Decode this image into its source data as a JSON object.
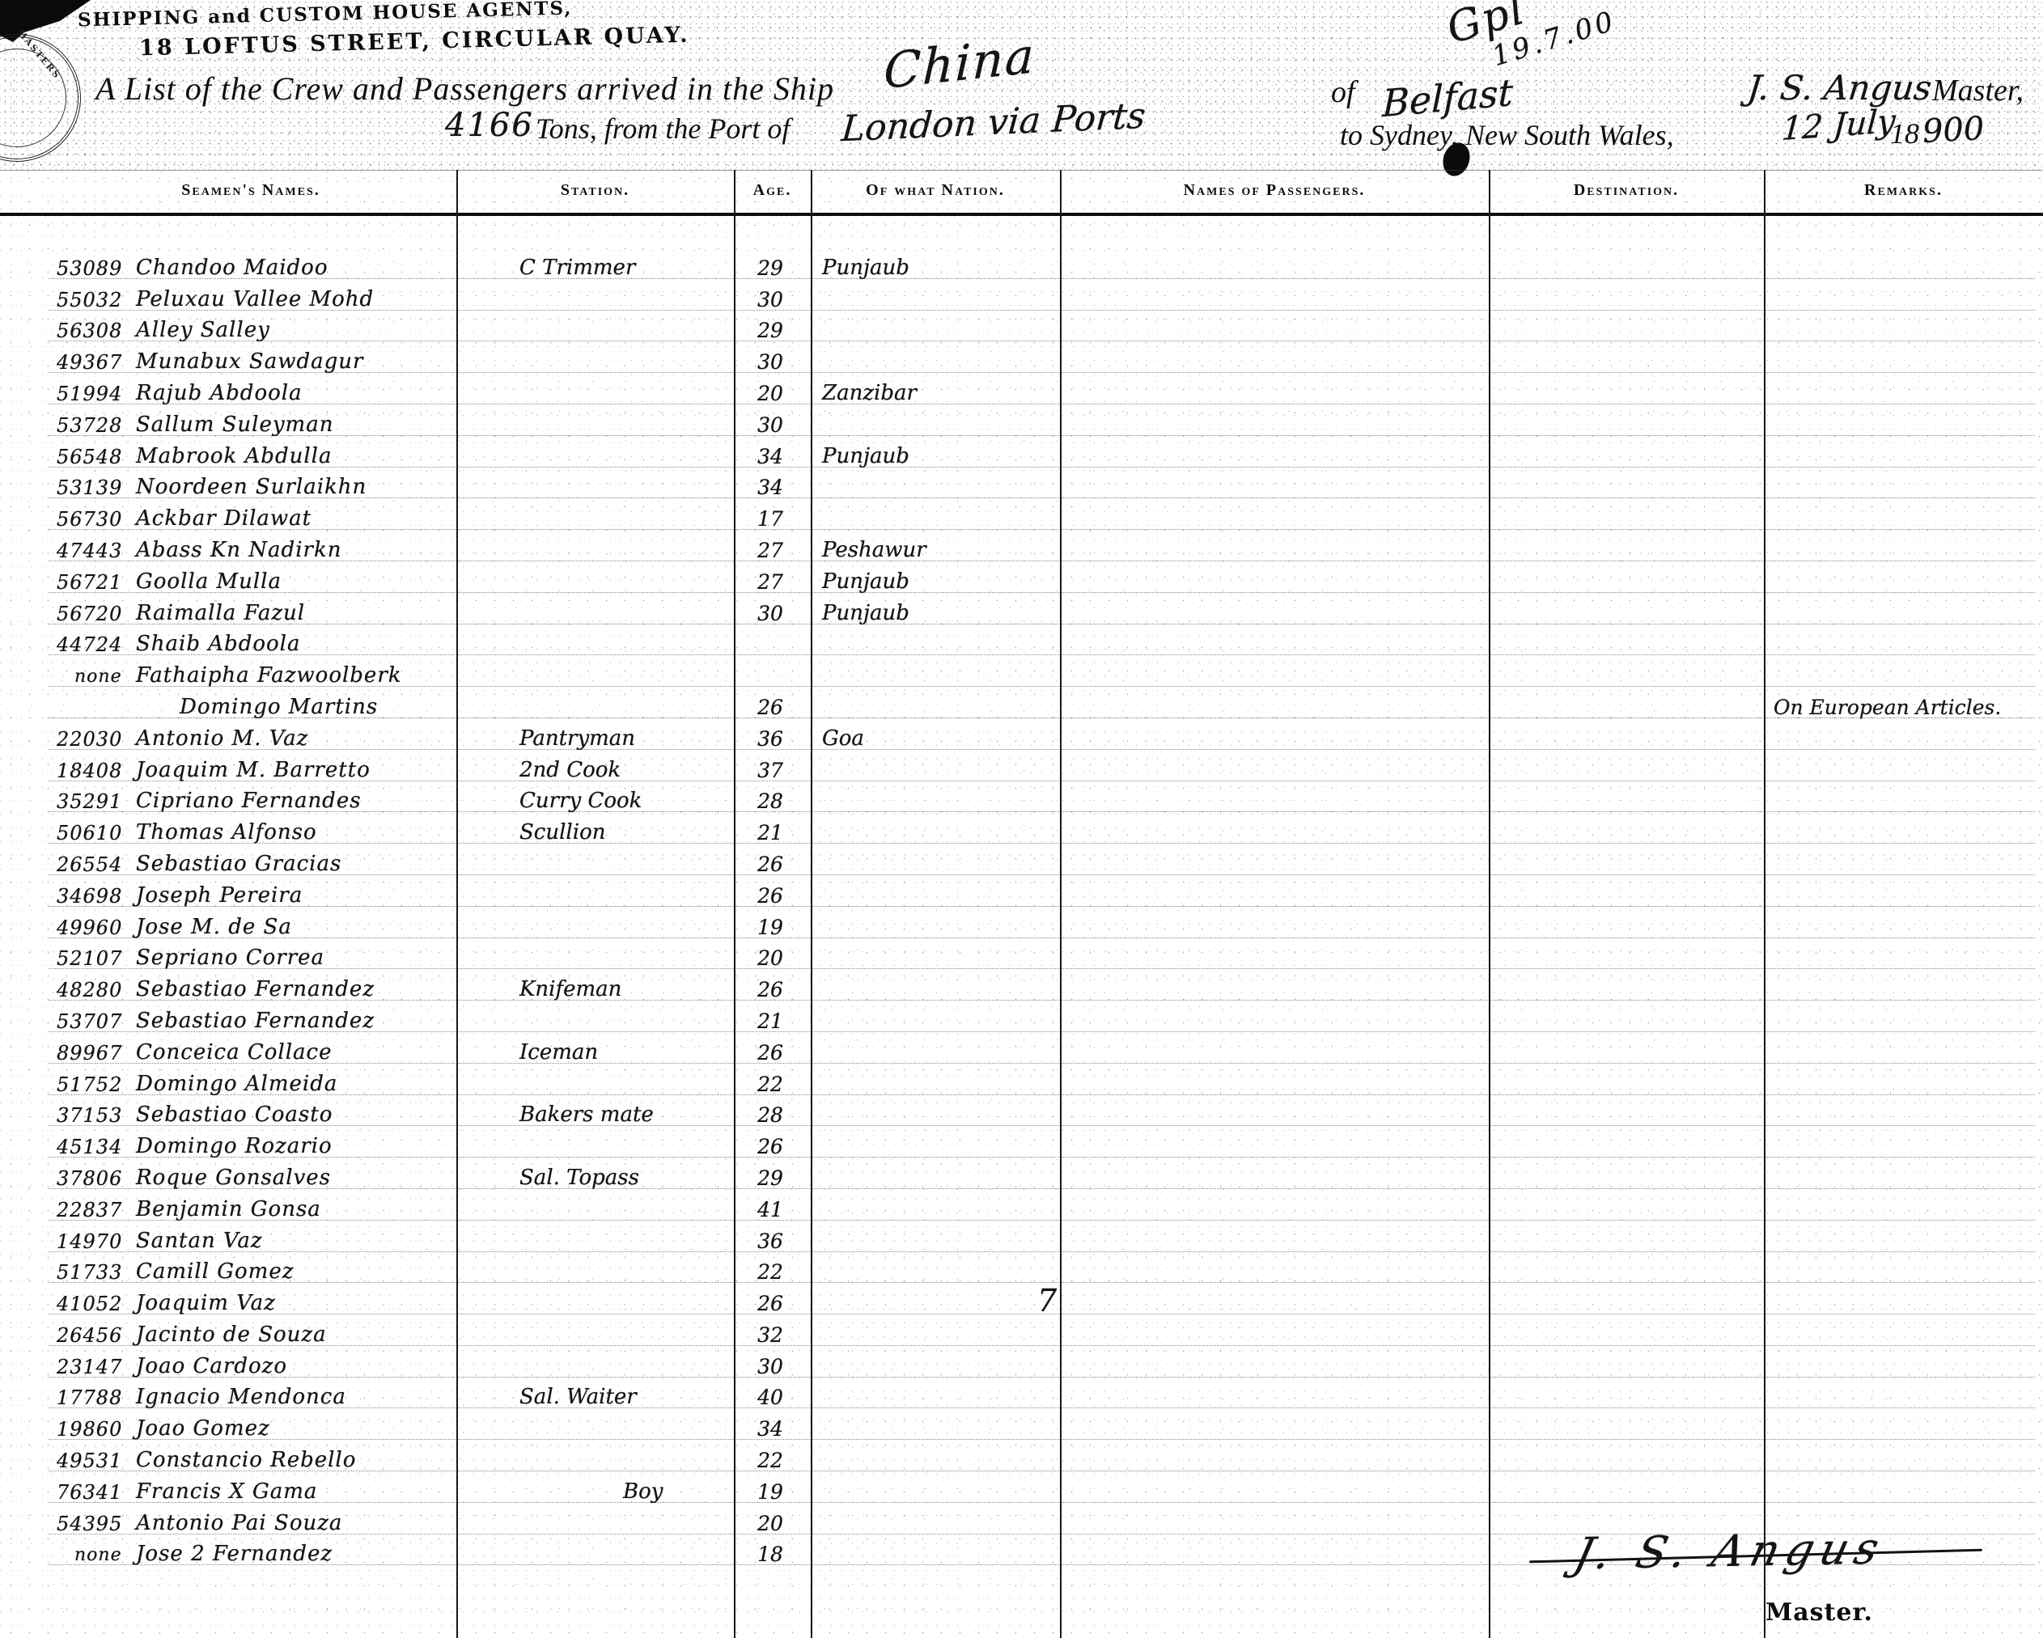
{
  "letterhead": {
    "line1": "SHIPPING and CUSTOM HOUSE AGENTS,",
    "line2": "18 LOFTUS STREET, CIRCULAR QUAY."
  },
  "seal_text": "MASTERS",
  "annotation": {
    "scrawl": "Gpl",
    "date": "19.7.00"
  },
  "header": {
    "title_pre": "A List of the Crew and Passengers arrived in the Ship",
    "ship_name": "China",
    "of_label": "of",
    "registry_port": "Belfast",
    "master_name": "J. S. Angus",
    "master_suffix": "Master,",
    "tons_value": "4166",
    "tons_text": "Tons, from the Port of",
    "departure_port": "London via Ports",
    "destination_text": "to Sydney, New South Wales,",
    "arrival_date": "12 July",
    "year_printed": "18",
    "year_hand": "900"
  },
  "table": {
    "columns": [
      "Seamen's Names.",
      "Station.",
      "Age.",
      "Of what Nation.",
      "Names of Passengers.",
      "Destination.",
      "Remarks."
    ],
    "rows": [
      {
        "no": "53089",
        "name": "Chandoo Maidoo",
        "station": "C Trimmer",
        "age": "29",
        "nation": "Punjaub",
        "remarks": ""
      },
      {
        "no": "55032",
        "name": "Peluxau Vallee Mohd",
        "station": "",
        "age": "30",
        "nation": "",
        "remarks": ""
      },
      {
        "no": "56308",
        "name": "Alley Salley",
        "station": "",
        "age": "29",
        "nation": "",
        "remarks": ""
      },
      {
        "no": "49367",
        "name": "Munabux Sawdagur",
        "station": "",
        "age": "30",
        "nation": "",
        "remarks": ""
      },
      {
        "no": "51994",
        "name": "Rajub Abdoola",
        "station": "",
        "age": "20",
        "nation": "Zanzibar",
        "remarks": ""
      },
      {
        "no": "53728",
        "name": "Sallum Suleyman",
        "station": "",
        "age": "30",
        "nation": "",
        "remarks": ""
      },
      {
        "no": "56548",
        "name": "Mabrook Abdulla",
        "station": "",
        "age": "34",
        "nation": "Punjaub",
        "remarks": ""
      },
      {
        "no": "53139",
        "name": "Noordeen Surlaikhn",
        "station": "",
        "age": "34",
        "nation": "",
        "remarks": ""
      },
      {
        "no": "56730",
        "name": "Ackbar Dilawat",
        "station": "",
        "age": "17",
        "nation": "",
        "remarks": ""
      },
      {
        "no": "47443",
        "name": "Abass Kn Nadirkn",
        "station": "",
        "age": "27",
        "nation": "Peshawur",
        "remarks": ""
      },
      {
        "no": "56721",
        "name": "Goolla Mulla",
        "station": "",
        "age": "27",
        "nation": "Punjaub",
        "remarks": ""
      },
      {
        "no": "56720",
        "name": "Raimalla Fazul",
        "station": "",
        "age": "30",
        "nation": "Punjaub",
        "remarks": ""
      },
      {
        "no": "44724",
        "name": "Shaib Abdoola",
        "station": "",
        "age": "",
        "nation": "",
        "remarks": ""
      },
      {
        "no": "none",
        "name": "Fathaipha Fazwoolberk",
        "station": "",
        "age": "",
        "nation": "",
        "remarks": ""
      },
      {
        "no": "",
        "name": "Domingo Martins",
        "station": "",
        "age": "26",
        "nation": "",
        "remarks": "On European Articles."
      },
      {
        "no": "22030",
        "name": "Antonio M. Vaz",
        "station": "Pantryman",
        "age": "36",
        "nation": "Goa",
        "remarks": ""
      },
      {
        "no": "18408",
        "name": "Joaquim M. Barretto",
        "station": "2nd Cook",
        "age": "37",
        "nation": "",
        "remarks": ""
      },
      {
        "no": "35291",
        "name": "Cipriano Fernandes",
        "station": "Curry Cook",
        "age": "28",
        "nation": "",
        "remarks": ""
      },
      {
        "no": "50610",
        "name": "Thomas Alfonso",
        "station": "Scullion",
        "age": "21",
        "nation": "",
        "remarks": ""
      },
      {
        "no": "26554",
        "name": "Sebastiao Gracias",
        "station": "",
        "age": "26",
        "nation": "",
        "remarks": ""
      },
      {
        "no": "34698",
        "name": "Joseph Pereira",
        "station": "",
        "age": "26",
        "nation": "",
        "remarks": ""
      },
      {
        "no": "49960",
        "name": "Jose M. de Sa",
        "station": "",
        "age": "19",
        "nation": "",
        "remarks": ""
      },
      {
        "no": "52107",
        "name": "Sepriano Correa",
        "station": "",
        "age": "20",
        "nation": "",
        "remarks": ""
      },
      {
        "no": "48280",
        "name": "Sebastiao Fernandez",
        "station": "Knifeman",
        "age": "26",
        "nation": "",
        "remarks": ""
      },
      {
        "no": "53707",
        "name": "Sebastiao Fernandez",
        "station": "",
        "age": "21",
        "nation": "",
        "remarks": ""
      },
      {
        "no": "89967",
        "name": "Conceica Collace",
        "station": "Iceman",
        "age": "26",
        "nation": "",
        "remarks": ""
      },
      {
        "no": "51752",
        "name": "Domingo Almeida",
        "station": "",
        "age": "22",
        "nation": "",
        "remarks": ""
      },
      {
        "no": "37153",
        "name": "Sebastiao Coasto",
        "station": "Bakers mate",
        "age": "28",
        "nation": "",
        "remarks": ""
      },
      {
        "no": "45134",
        "name": "Domingo Rozario",
        "station": "",
        "age": "26",
        "nation": "",
        "remarks": ""
      },
      {
        "no": "37806",
        "name": "Roque Gonsalves",
        "station": "Sal. Topass",
        "age": "29",
        "nation": "",
        "remarks": ""
      },
      {
        "no": "22837",
        "name": "Benjamin Gonsa",
        "station": "",
        "age": "41",
        "nation": "",
        "remarks": ""
      },
      {
        "no": "14970",
        "name": "Santan Vaz",
        "station": "",
        "age": "36",
        "nation": "",
        "remarks": ""
      },
      {
        "no": "51733",
        "name": "Camill Gomez",
        "station": "",
        "age": "22",
        "nation": "",
        "remarks": ""
      },
      {
        "no": "41052",
        "name": "Joaquim Vaz",
        "station": "",
        "age": "26",
        "nation": "",
        "remarks": ""
      },
      {
        "no": "26456",
        "name": "Jacinto de Souza",
        "station": "",
        "age": "32",
        "nation": "",
        "remarks": ""
      },
      {
        "no": "23147",
        "name": "Joao Cardozo",
        "station": "",
        "age": "30",
        "nation": "",
        "remarks": ""
      },
      {
        "no": "17788",
        "name": "Ignacio Mendonca",
        "station": "Sal. Waiter",
        "age": "40",
        "nation": "",
        "remarks": ""
      },
      {
        "no": "19860",
        "name": "Joao Gomez",
        "station": "",
        "age": "34",
        "nation": "",
        "remarks": ""
      },
      {
        "no": "49531",
        "name": "Constancio Rebello",
        "station": "",
        "age": "22",
        "nation": "",
        "remarks": ""
      },
      {
        "no": "76341",
        "name": "Francis X Gama",
        "station": "Boy",
        "age": "19",
        "nation": "",
        "remarks": ""
      },
      {
        "no": "54395",
        "name": "Antonio Pai Souza",
        "station": "",
        "age": "20",
        "nation": "",
        "remarks": ""
      },
      {
        "no": "none",
        "name": "Jose 2 Fernandez",
        "station": "",
        "age": "18",
        "nation": "",
        "remarks": ""
      }
    ]
  },
  "stray_mark": "7",
  "footer": {
    "signature": "J. S. Angus",
    "label": "Master."
  }
}
